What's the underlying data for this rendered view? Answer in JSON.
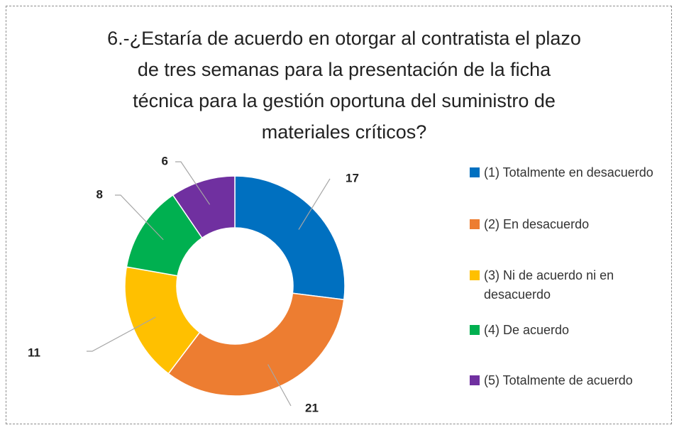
{
  "chart_data": {
    "type": "donut",
    "title": "6.-¿Estaría de acuerdo en otorgar al contratista el plazo de tres semanas para la presentación de la ficha técnica para la gestión oportuna del suministro de materiales críticos?",
    "categories": [
      "(1) Totalmente en desacuerdo",
      "(2) En desacuerdo",
      "(3) Ni de acuerdo ni en desacuerdo",
      "(4) De acuerdo",
      "(5) Totalmente de acuerdo"
    ],
    "values": [
      17,
      21,
      11,
      8,
      6
    ],
    "colors": [
      "#0070c0",
      "#ed7d31",
      "#ffc000",
      "#00b050",
      "#7030a0"
    ],
    "legend": "right"
  }
}
